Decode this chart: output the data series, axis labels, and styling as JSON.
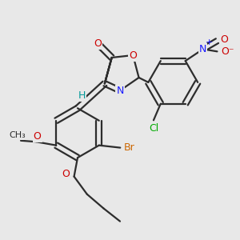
{
  "bg": "#e8e8e8",
  "bc": "#2d2d2d",
  "bw": 1.6,
  "colors": {
    "O": "#cc0000",
    "N": "#1a1aff",
    "Br": "#cc6600",
    "Cl": "#00aa00",
    "H": "#009999",
    "C": "#2d2d2d"
  },
  "figsize": [
    3.0,
    3.0
  ],
  "dpi": 100
}
